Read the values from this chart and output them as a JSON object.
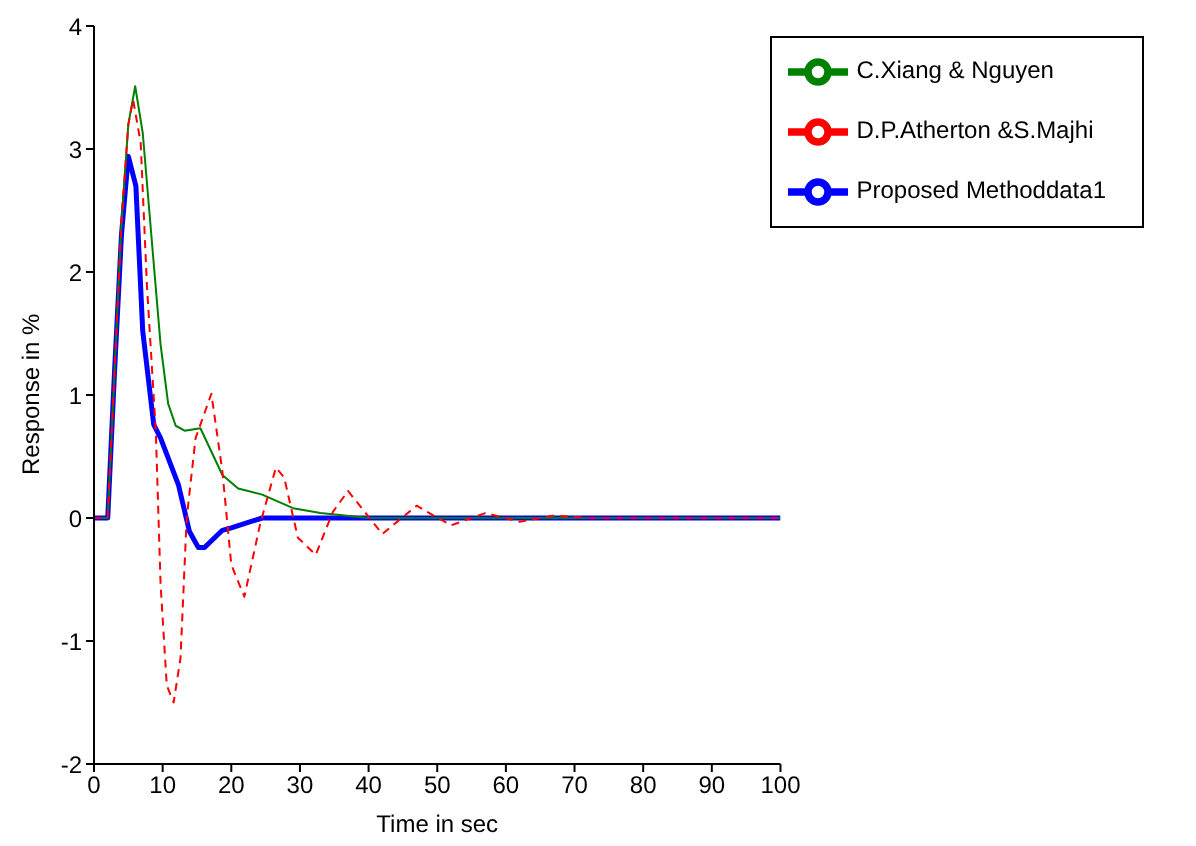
{
  "chart_data": {
    "type": "line",
    "xlabel": "Time in sec",
    "ylabel": "Response in %",
    "xlim": [
      0,
      100
    ],
    "ylim": [
      -2,
      4
    ],
    "xticks": [
      0,
      10,
      20,
      30,
      40,
      50,
      60,
      70,
      80,
      90,
      100
    ],
    "yticks": [
      -2,
      -1,
      0,
      1,
      2,
      3,
      4
    ],
    "grid": false,
    "legend": "top right",
    "marker": "none",
    "series": [
      {
        "name": "Proposed Methoddata1",
        "color": "#0000ff",
        "line_style": "solid",
        "x": [
          0,
          2,
          3,
          4,
          5,
          6.1,
          7.1,
          8.7,
          9.7,
          12.3,
          13.9,
          15.2,
          16.1,
          18.7,
          20,
          24.5,
          40,
          60,
          80,
          100
        ],
        "values": [
          0,
          0,
          1.2,
          2.3,
          2.94,
          2.7,
          1.52,
          0.76,
          0.65,
          0.27,
          -0.11,
          -0.24,
          -0.24,
          -0.1,
          -0.08,
          0,
          0,
          0,
          0,
          0
        ]
      },
      {
        "name": "C.Xiang & Nguyen",
        "color": "#008000",
        "line_style": "solid",
        "x": [
          0,
          2,
          3,
          4,
          5,
          6,
          7.1,
          8.7,
          9.7,
          10.8,
          11.9,
          13.2,
          15.5,
          18.7,
          21,
          24.5,
          29,
          33,
          40,
          60,
          80,
          100
        ],
        "values": [
          0,
          0,
          1.2,
          2.4,
          3.2,
          3.51,
          3.13,
          2.07,
          1.41,
          0.93,
          0.75,
          0.71,
          0.73,
          0.35,
          0.24,
          0.19,
          0.08,
          0.04,
          0,
          0,
          0,
          0
        ]
      },
      {
        "name": "D.P.Atherton &S.Majhi",
        "color": "#ff0000",
        "line_style": "dashed",
        "x": [
          0,
          2,
          3,
          4,
          5,
          5.7,
          6.8,
          7.7,
          9,
          9.7,
          10.6,
          11.6,
          12.6,
          13.5,
          14.8,
          17.1,
          18.7,
          20,
          21.9,
          24.2,
          26.5,
          27.7,
          29.7,
          32.3,
          34.8,
          37,
          42,
          47,
          52,
          57,
          62,
          67,
          72,
          80,
          100
        ],
        "values": [
          0,
          0,
          1.2,
          2.4,
          3.2,
          3.4,
          3.05,
          1.9,
          0.71,
          -0.54,
          -1.36,
          -1.5,
          -1.14,
          0,
          0.65,
          1.01,
          0.38,
          -0.38,
          -0.64,
          -0.05,
          0.41,
          0.33,
          -0.16,
          -0.3,
          0.05,
          0.22,
          -0.13,
          0.1,
          -0.06,
          0.04,
          -0.03,
          0.02,
          0,
          0,
          0
        ]
      }
    ]
  }
}
